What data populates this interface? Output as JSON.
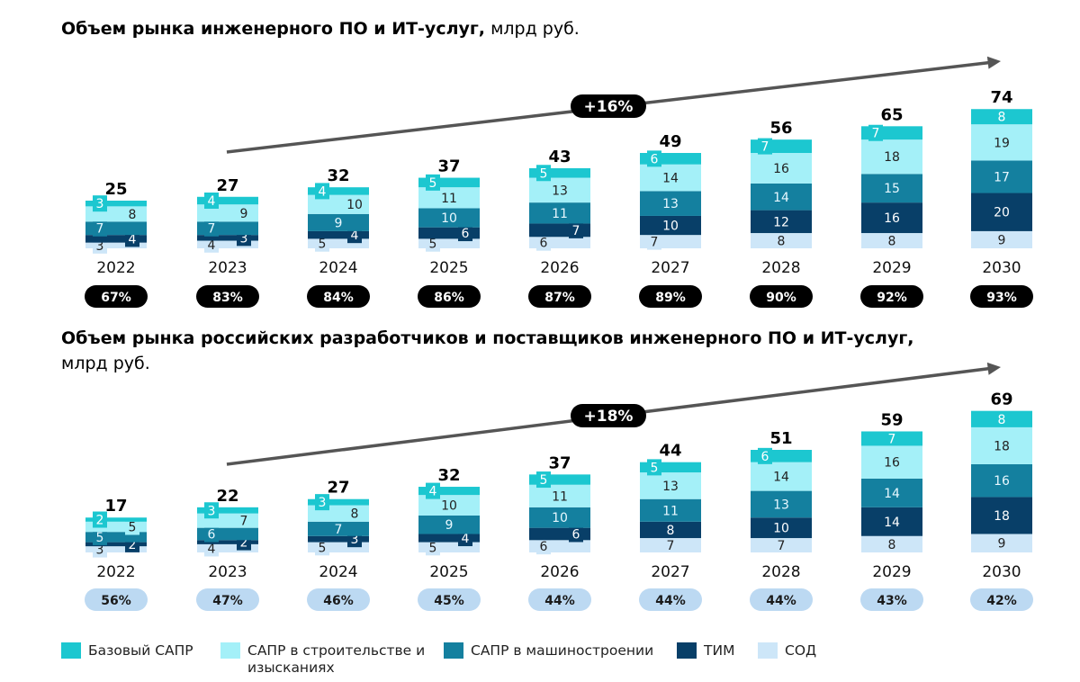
{
  "colors": {
    "base": "#1cc7d0",
    "construction": "#a4f0f8",
    "machine": "#14809f",
    "tim": "#083f68",
    "sod": "#cde6f8",
    "pill_dark": "#000000",
    "pill_light": "#bcd9f2",
    "arrow": "#555555"
  },
  "legend": [
    "Базовый САПР",
    "САПР в строительстве и изысканиях",
    "САПР в машиностроении",
    "ТИМ",
    "СОД"
  ],
  "chart_data": [
    {
      "type": "bar",
      "stacked": true,
      "title_bold": "Объем рынка инженерного ПО и ИТ-услуг,",
      "title_unit": " млрд руб.",
      "categories": [
        "2022",
        "2023",
        "2024",
        "2025",
        "2026",
        "2027",
        "2028",
        "2029",
        "2030"
      ],
      "totals": [
        "25",
        "27",
        "32",
        "37",
        "43",
        "49",
        "56",
        "65",
        "74"
      ],
      "series": [
        {
          "name": "СОД",
          "key": "sod",
          "values": [
            3,
            4,
            5,
            5,
            6,
            7,
            8,
            8,
            9
          ]
        },
        {
          "name": "ТИМ",
          "key": "tim",
          "values": [
            4,
            3,
            4,
            6,
            7,
            10,
            12,
            16,
            20
          ]
        },
        {
          "name": "САПР в машиностроении",
          "key": "machine",
          "values": [
            7,
            7,
            9,
            10,
            11,
            13,
            14,
            15,
            17
          ]
        },
        {
          "name": "САПР в строительстве и изысканиях",
          "key": "construction",
          "values": [
            8,
            9,
            10,
            11,
            13,
            14,
            16,
            18,
            19
          ]
        },
        {
          "name": "Базовый САПР",
          "key": "base",
          "values": [
            3,
            4,
            4,
            5,
            5,
            6,
            7,
            7,
            8
          ]
        }
      ],
      "shares": [
        "67%",
        "83%",
        "84%",
        "86%",
        "87%",
        "89%",
        "90%",
        "92%",
        "93%"
      ],
      "cagr": "+16%"
    },
    {
      "type": "bar",
      "stacked": true,
      "title_bold": "Объем рынка российских разработчиков и поставщиков инженерного ПО и ИТ-услуг,",
      "title_unit": " млрд руб.",
      "categories": [
        "2022",
        "2023",
        "2024",
        "2025",
        "2026",
        "2027",
        "2028",
        "2029",
        "2030"
      ],
      "totals": [
        "17",
        "22",
        "27",
        "32",
        "37",
        "44",
        "51",
        "59",
        "69"
      ],
      "series": [
        {
          "name": "СОД",
          "key": "sod",
          "values": [
            3,
            4,
            5,
            5,
            6,
            7,
            7,
            8,
            9
          ]
        },
        {
          "name": "ТИМ",
          "key": "tim",
          "values": [
            2,
            2,
            3,
            4,
            6,
            8,
            10,
            14,
            18
          ]
        },
        {
          "name": "САПР в машиностроении",
          "key": "machine",
          "values": [
            5,
            6,
            7,
            9,
            10,
            11,
            13,
            14,
            16
          ]
        },
        {
          "name": "САПР в строительстве и изысканиях",
          "key": "construction",
          "values": [
            5,
            7,
            8,
            10,
            11,
            13,
            14,
            16,
            18
          ]
        },
        {
          "name": "Базовый САПР",
          "key": "base",
          "values": [
            2,
            3,
            3,
            4,
            5,
            5,
            6,
            7,
            8
          ]
        }
      ],
      "shares": [
        "56%",
        "47%",
        "46%",
        "45%",
        "44%",
        "44%",
        "44%",
        "43%",
        "42%"
      ],
      "cagr": "+18%"
    }
  ]
}
